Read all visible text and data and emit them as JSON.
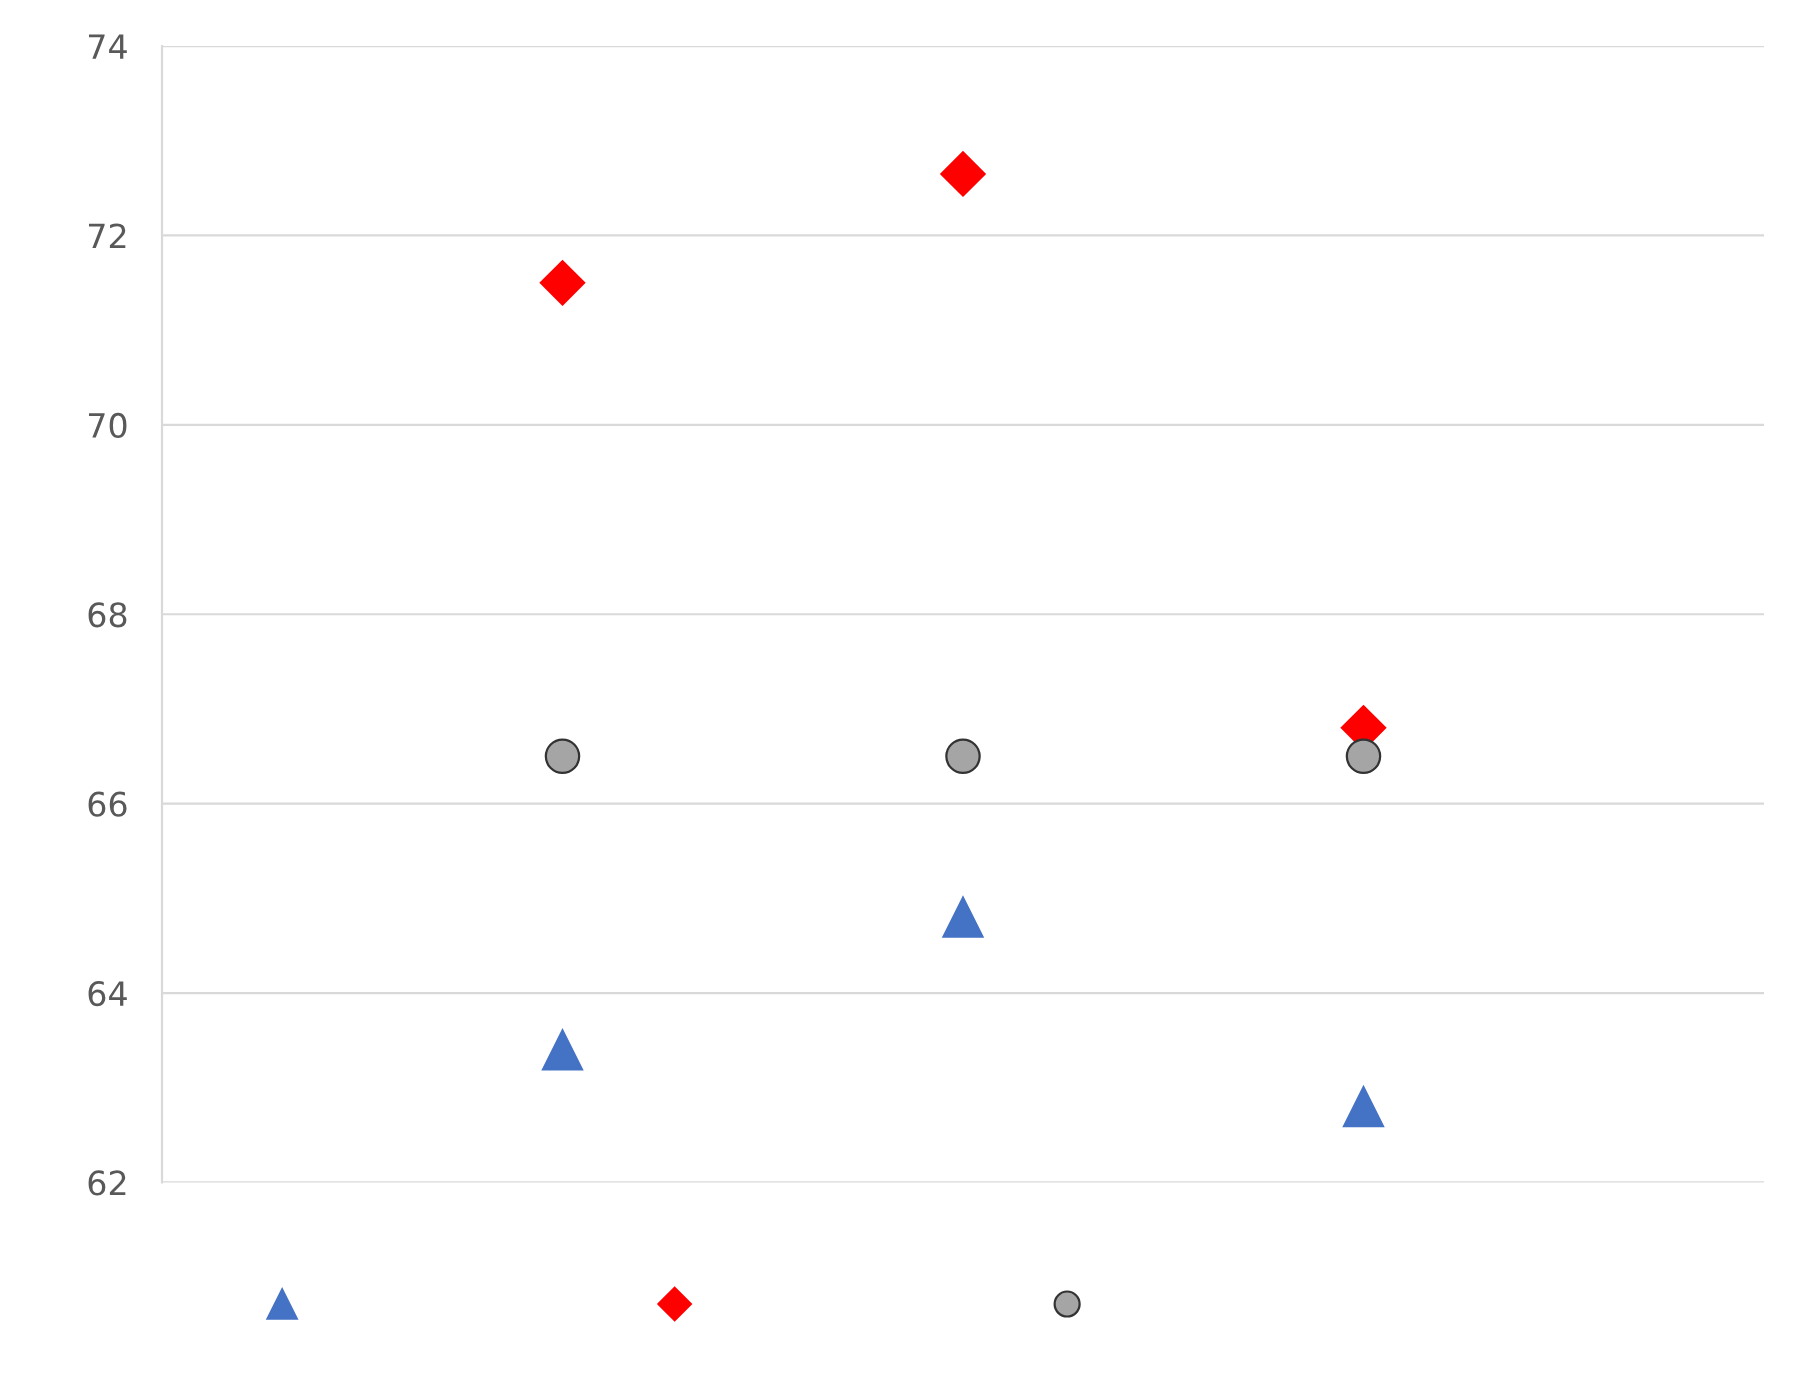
{
  "chart_data": {
    "type": "scatter",
    "categories": [
      null,
      null,
      null
    ],
    "ylim": [
      62,
      74
    ],
    "yticks": [
      62,
      64,
      66,
      68,
      70,
      72,
      74
    ],
    "grid": "y",
    "tick_labels": "y",
    "series": [
      {
        "color": "#4472c4",
        "marker": "triangle",
        "values": [
          63.4,
          64.8,
          62.8
        ]
      },
      {
        "color": "#ff0000",
        "marker": "diamond",
        "values": [
          71.5,
          72.65,
          66.8
        ]
      },
      {
        "color": "#a5a5a5",
        "marker": "circle",
        "values": [
          66.5,
          66.5,
          66.5
        ]
      }
    ]
  }
}
